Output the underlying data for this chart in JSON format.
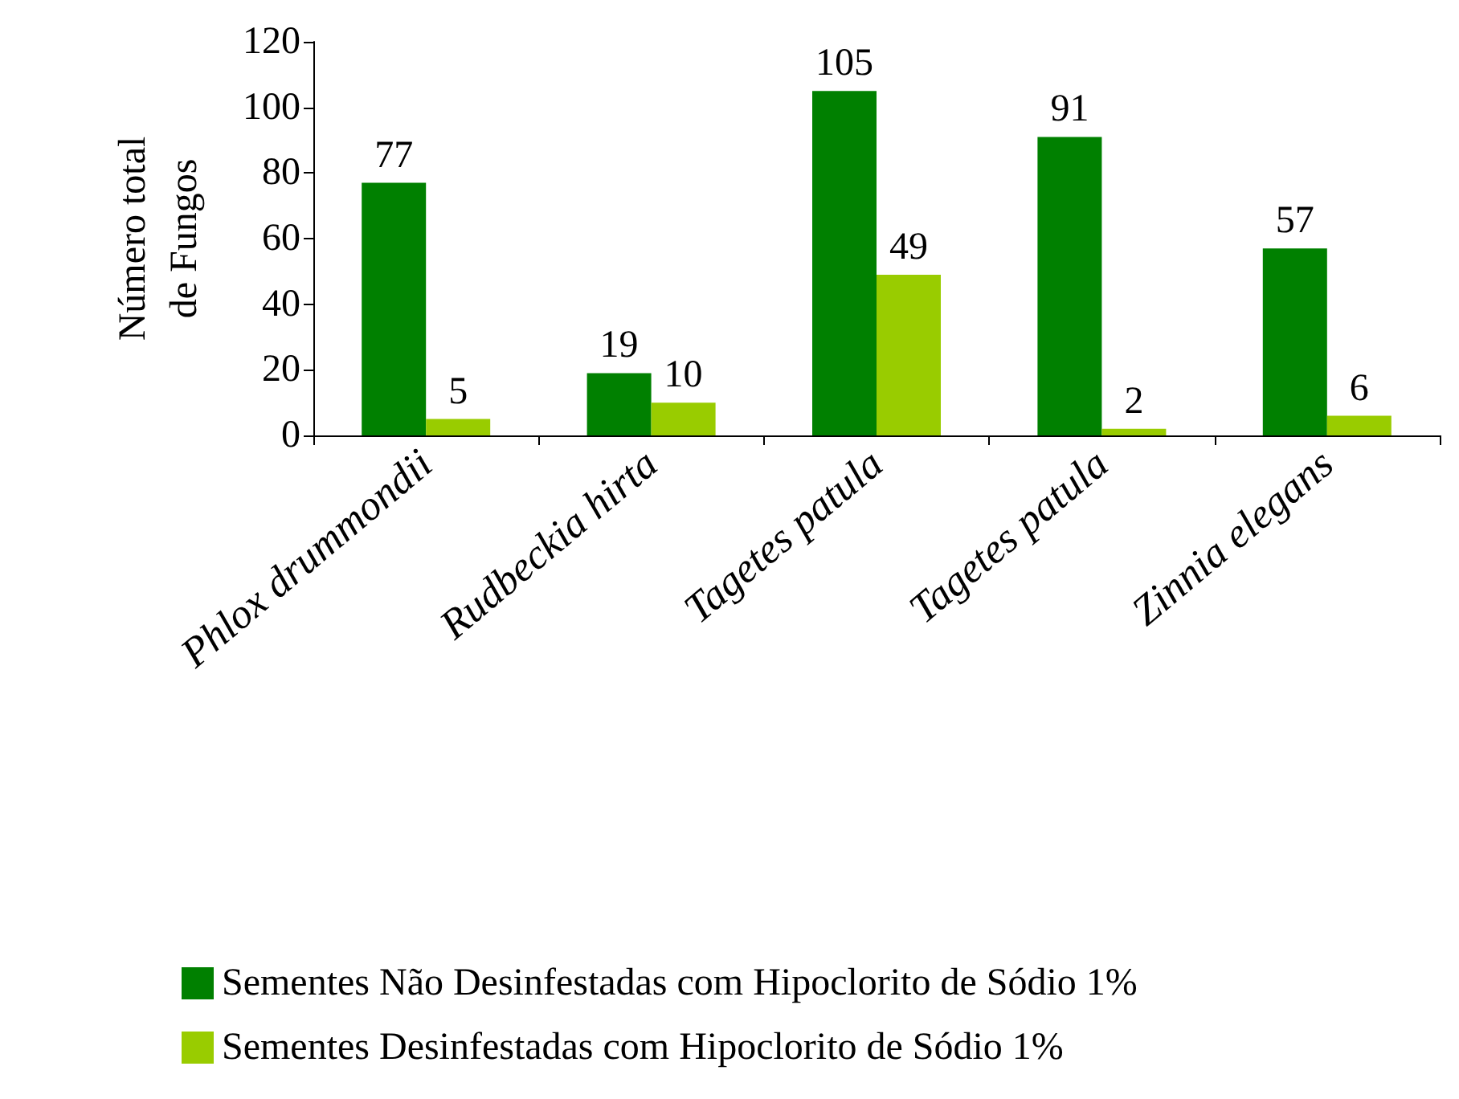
{
  "chart_data": {
    "type": "bar",
    "ylabel": "Número total\nde Fungos",
    "categories": [
      "Phlox drummondii",
      "Rudbeckia hirta",
      "Tagetes patula",
      "Tagetes patula",
      "Zinnia elegans"
    ],
    "series": [
      {
        "name": "Sementes Não Desinfestadas com Hipoclorito de Sódio 1%",
        "color": "#008000",
        "values": [
          77,
          19,
          105,
          91,
          57
        ]
      },
      {
        "name": "Sementes Desinfestadas com Hipoclorito de Sódio 1%",
        "color": "#99cc00",
        "values": [
          5,
          10,
          49,
          2,
          6
        ]
      }
    ],
    "ylim": [
      0,
      120
    ],
    "yticks": [
      0,
      20,
      40,
      60,
      80,
      100,
      120
    ],
    "data_labels": true,
    "grid": false,
    "legend": "bottom"
  }
}
